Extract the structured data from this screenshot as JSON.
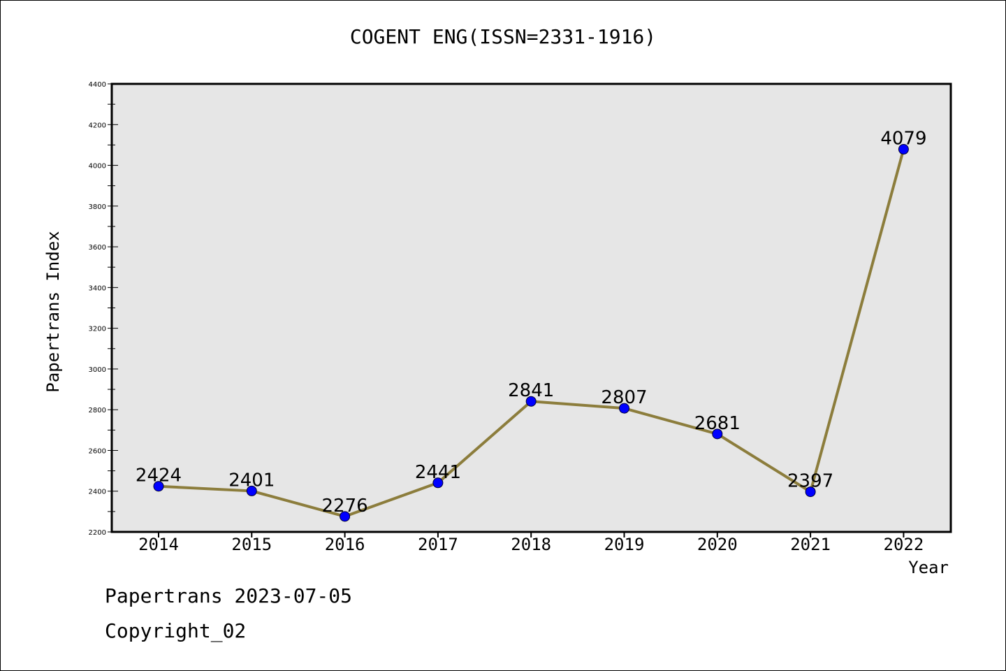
{
  "title": "COGENT ENG(ISSN=2331-1916)",
  "footer": {
    "line1": "Papertrans 2023-07-05",
    "line2": "Copyright_02"
  },
  "colors": {
    "plot_bg": "#e6e6e6",
    "line": "#8c7d3c",
    "marker": "#0000ff"
  },
  "chart_data": {
    "type": "line",
    "title": "COGENT ENG(ISSN=2331-1916)",
    "xlabel": "Year",
    "ylabel": "Papertrans Index",
    "x": [
      "2014",
      "2015",
      "2016",
      "2017",
      "2018",
      "2019",
      "2020",
      "2021",
      "2022"
    ],
    "values": [
      2424,
      2401,
      2276,
      2441,
      2841,
      2807,
      2681,
      2397,
      4079
    ],
    "data_labels": [
      "2424",
      "2401",
      "2276",
      "2441",
      "2841",
      "2807",
      "2681",
      "2397",
      "4079"
    ],
    "ylim": [
      2200,
      4400
    ],
    "yticks": [
      "2200",
      "2400",
      "2600",
      "2800",
      "3000",
      "3200",
      "3400",
      "3600",
      "3800",
      "4000",
      "4200",
      "4400"
    ],
    "grid": false,
    "legend": "none"
  }
}
